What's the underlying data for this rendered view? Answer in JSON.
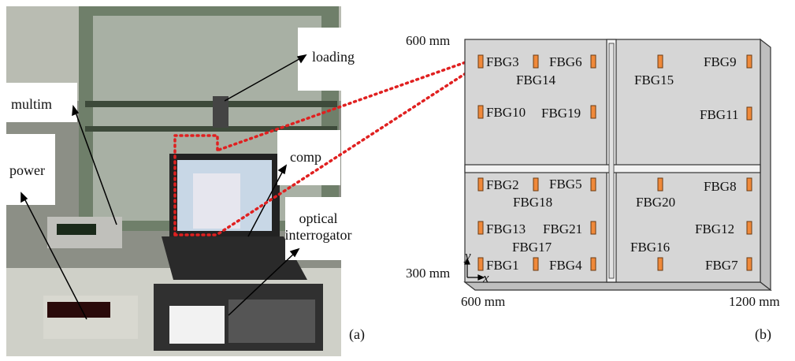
{
  "panel_a": {
    "labels": {
      "loading": "loading",
      "multim": "multim",
      "power": "power",
      "comp": "comp",
      "optical": [
        "optical",
        "interrogator"
      ]
    },
    "tag": "(a)"
  },
  "panel_b": {
    "corner_labels": [
      "600 mm",
      "300 mm",
      "600 mm",
      "1200 mm"
    ],
    "axes": [
      "y",
      "x"
    ],
    "sensors": [
      "FBG3",
      "FBG6",
      "FBG14",
      "FBG15",
      "FBG9",
      "FBG10",
      "FBG19",
      "FBG11",
      "FBG2",
      "FBG5",
      "FBG18",
      "FBG20",
      "FBG8",
      "FBG13",
      "FBG21",
      "FBG17",
      "FBG16",
      "FBG12",
      "FBG1",
      "FBG4",
      "FBG7"
    ],
    "tag": "(b)"
  }
}
